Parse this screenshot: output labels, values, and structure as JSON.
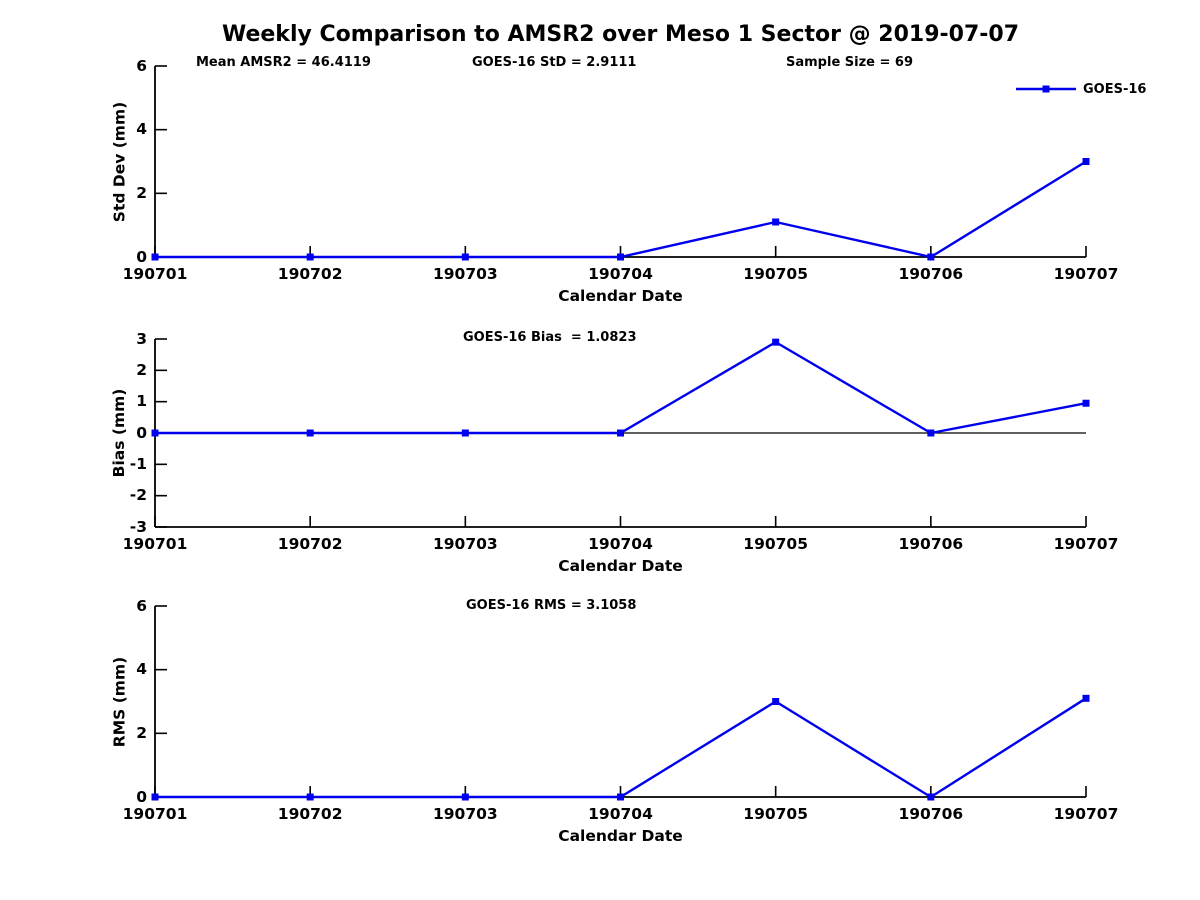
{
  "figure": {
    "title": "Weekly Comparison to AMSR2 over Meso 1 Sector @ 2019-07-07",
    "line_color": "#0000EE",
    "axis_color": "#000000",
    "legend": {
      "label": "GOES-16"
    }
  },
  "chart_data": [
    {
      "type": "line",
      "ylabel": "Std Dev (mm)",
      "xlabel": "Calendar Date",
      "categories": [
        "190701",
        "190702",
        "190703",
        "190704",
        "190705",
        "190706",
        "190707"
      ],
      "series": [
        {
          "name": "GOES-16",
          "values": [
            0,
            0,
            0,
            0,
            1.1,
            0,
            3.0
          ]
        }
      ],
      "ylim": [
        0,
        6
      ],
      "yticks": [
        0,
        2,
        4,
        6
      ],
      "grid": false,
      "legend_position": "top-right",
      "annotations": [
        {
          "text": "Mean AMSR2 = 46.4119"
        },
        {
          "text": "GOES-16 StD = 2.9111"
        },
        {
          "text": "Sample Size = 69"
        }
      ]
    },
    {
      "type": "line",
      "ylabel": "Bias (mm)",
      "xlabel": "Calendar Date",
      "categories": [
        "190701",
        "190702",
        "190703",
        "190704",
        "190705",
        "190706",
        "190707"
      ],
      "series": [
        {
          "name": "GOES-16",
          "values": [
            0,
            0,
            0,
            0,
            2.9,
            0,
            0.95
          ]
        }
      ],
      "ylim": [
        -3,
        3
      ],
      "yticks": [
        3,
        2,
        1,
        0,
        -1,
        -2,
        -3
      ],
      "zero_line": true,
      "grid": false,
      "annotations": [
        {
          "text": "GOES-16 Bias  = 1.0823"
        }
      ]
    },
    {
      "type": "line",
      "ylabel": "RMS (mm)",
      "xlabel": "Calendar Date",
      "categories": [
        "190701",
        "190702",
        "190703",
        "190704",
        "190705",
        "190706",
        "190707"
      ],
      "series": [
        {
          "name": "GOES-16",
          "values": [
            0,
            0,
            0,
            0,
            3.0,
            0,
            3.1
          ]
        }
      ],
      "ylim": [
        0,
        6
      ],
      "yticks": [
        0,
        2,
        4,
        6
      ],
      "grid": false,
      "annotations": [
        {
          "text": "GOES-16 RMS = 3.1058"
        }
      ]
    }
  ]
}
